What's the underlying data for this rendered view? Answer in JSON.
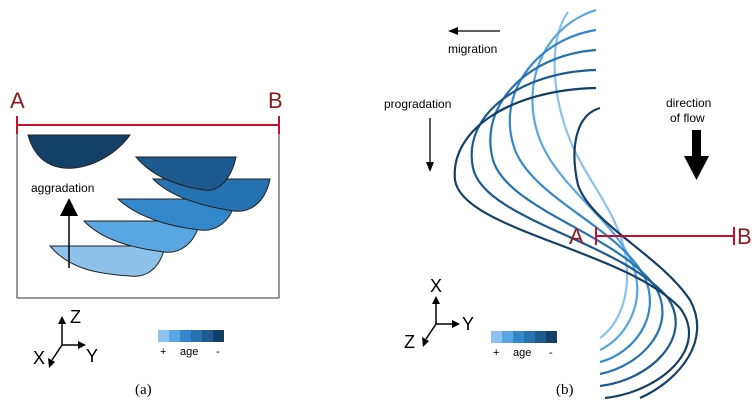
{
  "panel_a": {
    "caption": "(a)",
    "label_a": "A",
    "label_b": "B",
    "process_label": "aggradation",
    "axes": {
      "z": "Z",
      "x": "X",
      "y": "Y"
    },
    "legend": {
      "plus": "+",
      "label": "age",
      "minus": "-"
    }
  },
  "panel_b": {
    "caption": "(b)",
    "label_a": "A",
    "label_b": "B",
    "migration_label": "migration",
    "progradation_label": "progradation",
    "flow_label_line1": "direction",
    "flow_label_line2": "of flow",
    "axes": {
      "x": "X",
      "y": "Y",
      "z": "Z"
    },
    "legend": {
      "plus": "+",
      "label": "age",
      "minus": "-"
    }
  },
  "colors": {
    "section_line": "#c8102e",
    "label_dark_red": "#8b1a1a",
    "age_ramp": [
      "#8cc2eb",
      "#5aa6e0",
      "#3388cc",
      "#2672b0",
      "#1c5a90",
      "#143f66"
    ]
  }
}
